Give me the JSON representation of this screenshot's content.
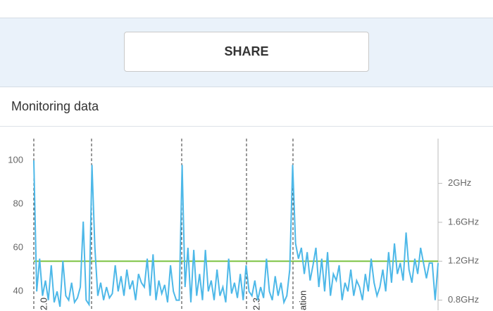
{
  "share_button": "SHARE",
  "card_title": "Monitoring data",
  "chart_data": {
    "type": "line",
    "annotations": [
      "2.0",
      "2.3",
      "ation"
    ],
    "ylim": [
      32,
      110
    ],
    "yticks": [
      40,
      60,
      80,
      100
    ],
    "y2lim": [
      0.71,
      2.46
    ],
    "y2ticks": [
      {
        "value": 0.8,
        "label": "0.8GHz"
      },
      {
        "value": 1.2,
        "label": "1.2GHz"
      },
      {
        "value": 1.6,
        "label": "1.6GHz"
      },
      {
        "value": 2,
        "label": "2GHz"
      }
    ],
    "series": [
      {
        "color": "#4db8e8",
        "values": [
          100,
          40,
          55,
          38,
          45,
          36,
          52,
          35,
          40,
          33,
          54,
          38,
          36,
          44,
          35,
          37,
          42,
          72,
          36,
          34,
          98,
          60,
          38,
          44,
          36,
          42,
          37,
          39,
          52,
          40,
          47,
          38,
          50,
          41,
          45,
          36,
          48,
          44,
          42,
          55,
          38,
          57,
          36,
          45,
          39,
          43,
          35,
          52,
          40,
          36,
          36,
          98,
          42,
          60,
          35,
          59,
          38,
          48,
          36,
          59,
          40,
          45,
          36,
          50,
          38,
          42,
          35,
          55,
          39,
          44,
          37,
          48,
          36,
          52,
          40,
          38,
          45,
          36,
          42,
          37,
          55,
          40,
          36,
          47,
          38,
          44,
          35,
          38,
          50,
          98,
          62,
          55,
          60,
          48,
          58,
          45,
          52,
          60,
          42,
          55,
          40,
          58,
          38,
          48,
          45,
          52,
          36,
          44,
          40,
          50,
          38,
          45,
          42,
          36,
          48,
          40,
          55,
          44,
          38,
          42,
          50,
          40,
          58,
          44,
          62,
          48,
          53,
          45,
          67,
          50,
          44,
          55,
          48,
          60,
          53,
          46,
          53,
          53,
          36,
          53
        ]
      },
      {
        "color": "#7cc242",
        "axis": "y2",
        "values": [
          1.2,
          1.2,
          1.2,
          1.2,
          1.2,
          1.2,
          1.2,
          1.2,
          1.2,
          1.2,
          1.2,
          1.2,
          1.2,
          1.2,
          1.2,
          1.2,
          1.2,
          1.2,
          1.2,
          1.2,
          1.2,
          1.2,
          1.2,
          1.2,
          1.2,
          1.2,
          1.2,
          1.2,
          1.2,
          1.2,
          1.2,
          1.2,
          1.2,
          1.2,
          1.2,
          1.2,
          1.2,
          1.2,
          1.2,
          1.2,
          1.2,
          1.2,
          1.2,
          1.2,
          1.2,
          1.2,
          1.2,
          1.2,
          1.2,
          1.2,
          1.2,
          1.2,
          1.2,
          1.2,
          1.2,
          1.2,
          1.2,
          1.2,
          1.2,
          1.2,
          1.2,
          1.2,
          1.2,
          1.2,
          1.2,
          1.2,
          1.2,
          1.2,
          1.2,
          1.2,
          1.2,
          1.2,
          1.2,
          1.2,
          1.2,
          1.2,
          1.2,
          1.2,
          1.2,
          1.2,
          1.2,
          1.2,
          1.2,
          1.2,
          1.2,
          1.2,
          1.2,
          1.2,
          1.2,
          1.2,
          1.2,
          1.2,
          1.2,
          1.2,
          1.2,
          1.2,
          1.2,
          1.2,
          1.2,
          1.2,
          1.2,
          1.2,
          1.2,
          1.2,
          1.2,
          1.2,
          1.2,
          1.2,
          1.2,
          1.2,
          1.2,
          1.2,
          1.2,
          1.2,
          1.2,
          1.2,
          1.2,
          1.2,
          1.2,
          1.2,
          1.2,
          1.2,
          1.2,
          1.2,
          1.2,
          1.2,
          1.2,
          1.2,
          1.2,
          1.2,
          1.2,
          1.2,
          1.2,
          1.2,
          1.2,
          1.2,
          1.2,
          1.2,
          1.2,
          1.2
        ]
      }
    ]
  }
}
